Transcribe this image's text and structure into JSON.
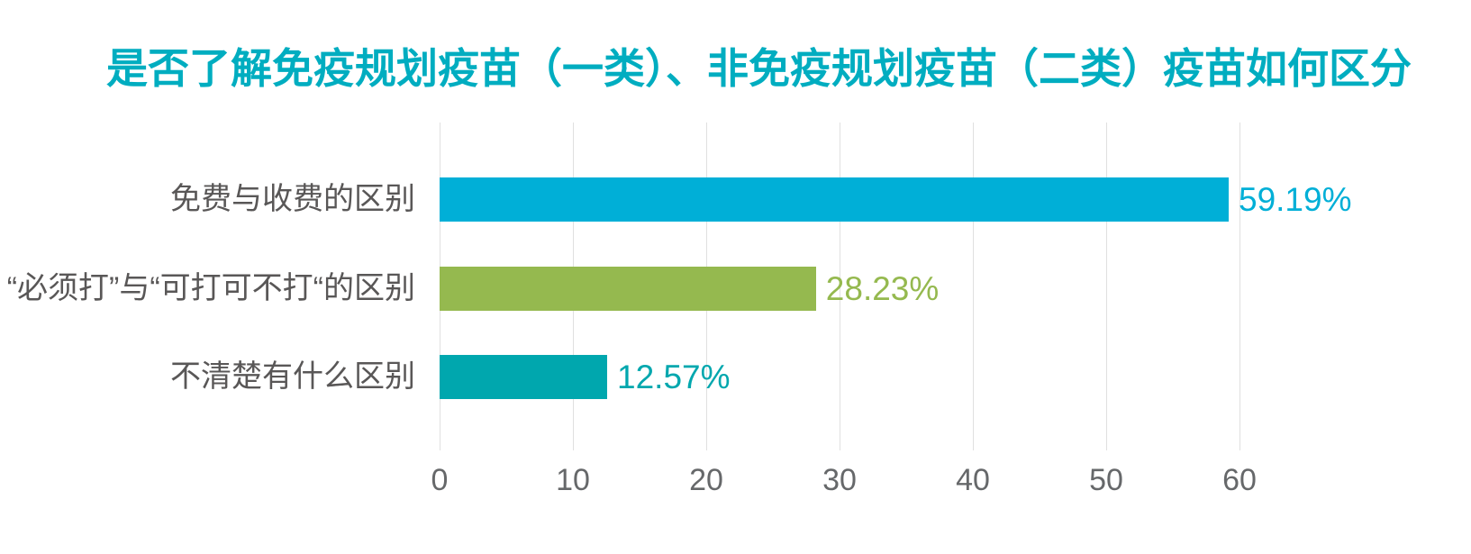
{
  "page": {
    "background": "#ffffff"
  },
  "chart_data": {
    "type": "bar",
    "orientation": "horizontal",
    "title": "是否了解免疫规划疫苗（一类）、非免疫规划疫苗（二类）疫苗如何区分",
    "title_color": "#00adc0",
    "categories": [
      "免费与收费的区别",
      "“必须打”与“可打可不打“的区别",
      "不清楚有什么区别"
    ],
    "values": [
      59.19,
      28.23,
      12.57
    ],
    "value_labels": [
      "59.19%",
      "28.23%",
      "12.57%"
    ],
    "bar_colors": [
      "#00afd7",
      "#95b94f",
      "#00a7ae"
    ],
    "category_label_color": "#595757",
    "tick_label_color": "#66686a",
    "gridline_color": "#e0e0e0",
    "x_ticks": [
      0,
      10,
      20,
      30,
      40,
      50,
      60
    ],
    "xlim": [
      0,
      60
    ],
    "xlabel": "",
    "ylabel": "",
    "grid": "vertical-only",
    "legend": "none"
  }
}
